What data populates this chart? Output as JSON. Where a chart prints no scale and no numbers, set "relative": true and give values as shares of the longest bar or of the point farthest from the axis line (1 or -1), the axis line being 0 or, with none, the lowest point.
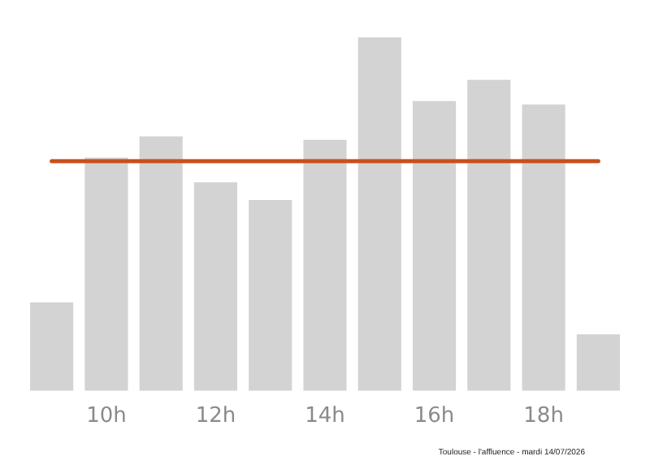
{
  "chart_data": {
    "type": "bar",
    "relative": true,
    "categories": [
      null,
      "10h",
      null,
      "12h",
      null,
      "14h",
      null,
      "16h",
      null,
      "18h",
      null
    ],
    "values": [
      0.25,
      0.66,
      0.72,
      0.59,
      0.54,
      0.71,
      1,
      0.82,
      0.88,
      0.81,
      0.16
    ],
    "color": "#d3d3d3",
    "ref_lines": [
      {
        "axis": "y",
        "value": 0.65,
        "color": "#c8501e"
      }
    ],
    "grid": false,
    "legend": false,
    "annotations": [
      "Toulouse - l'affluence - mardi 14/07/2026"
    ]
  }
}
